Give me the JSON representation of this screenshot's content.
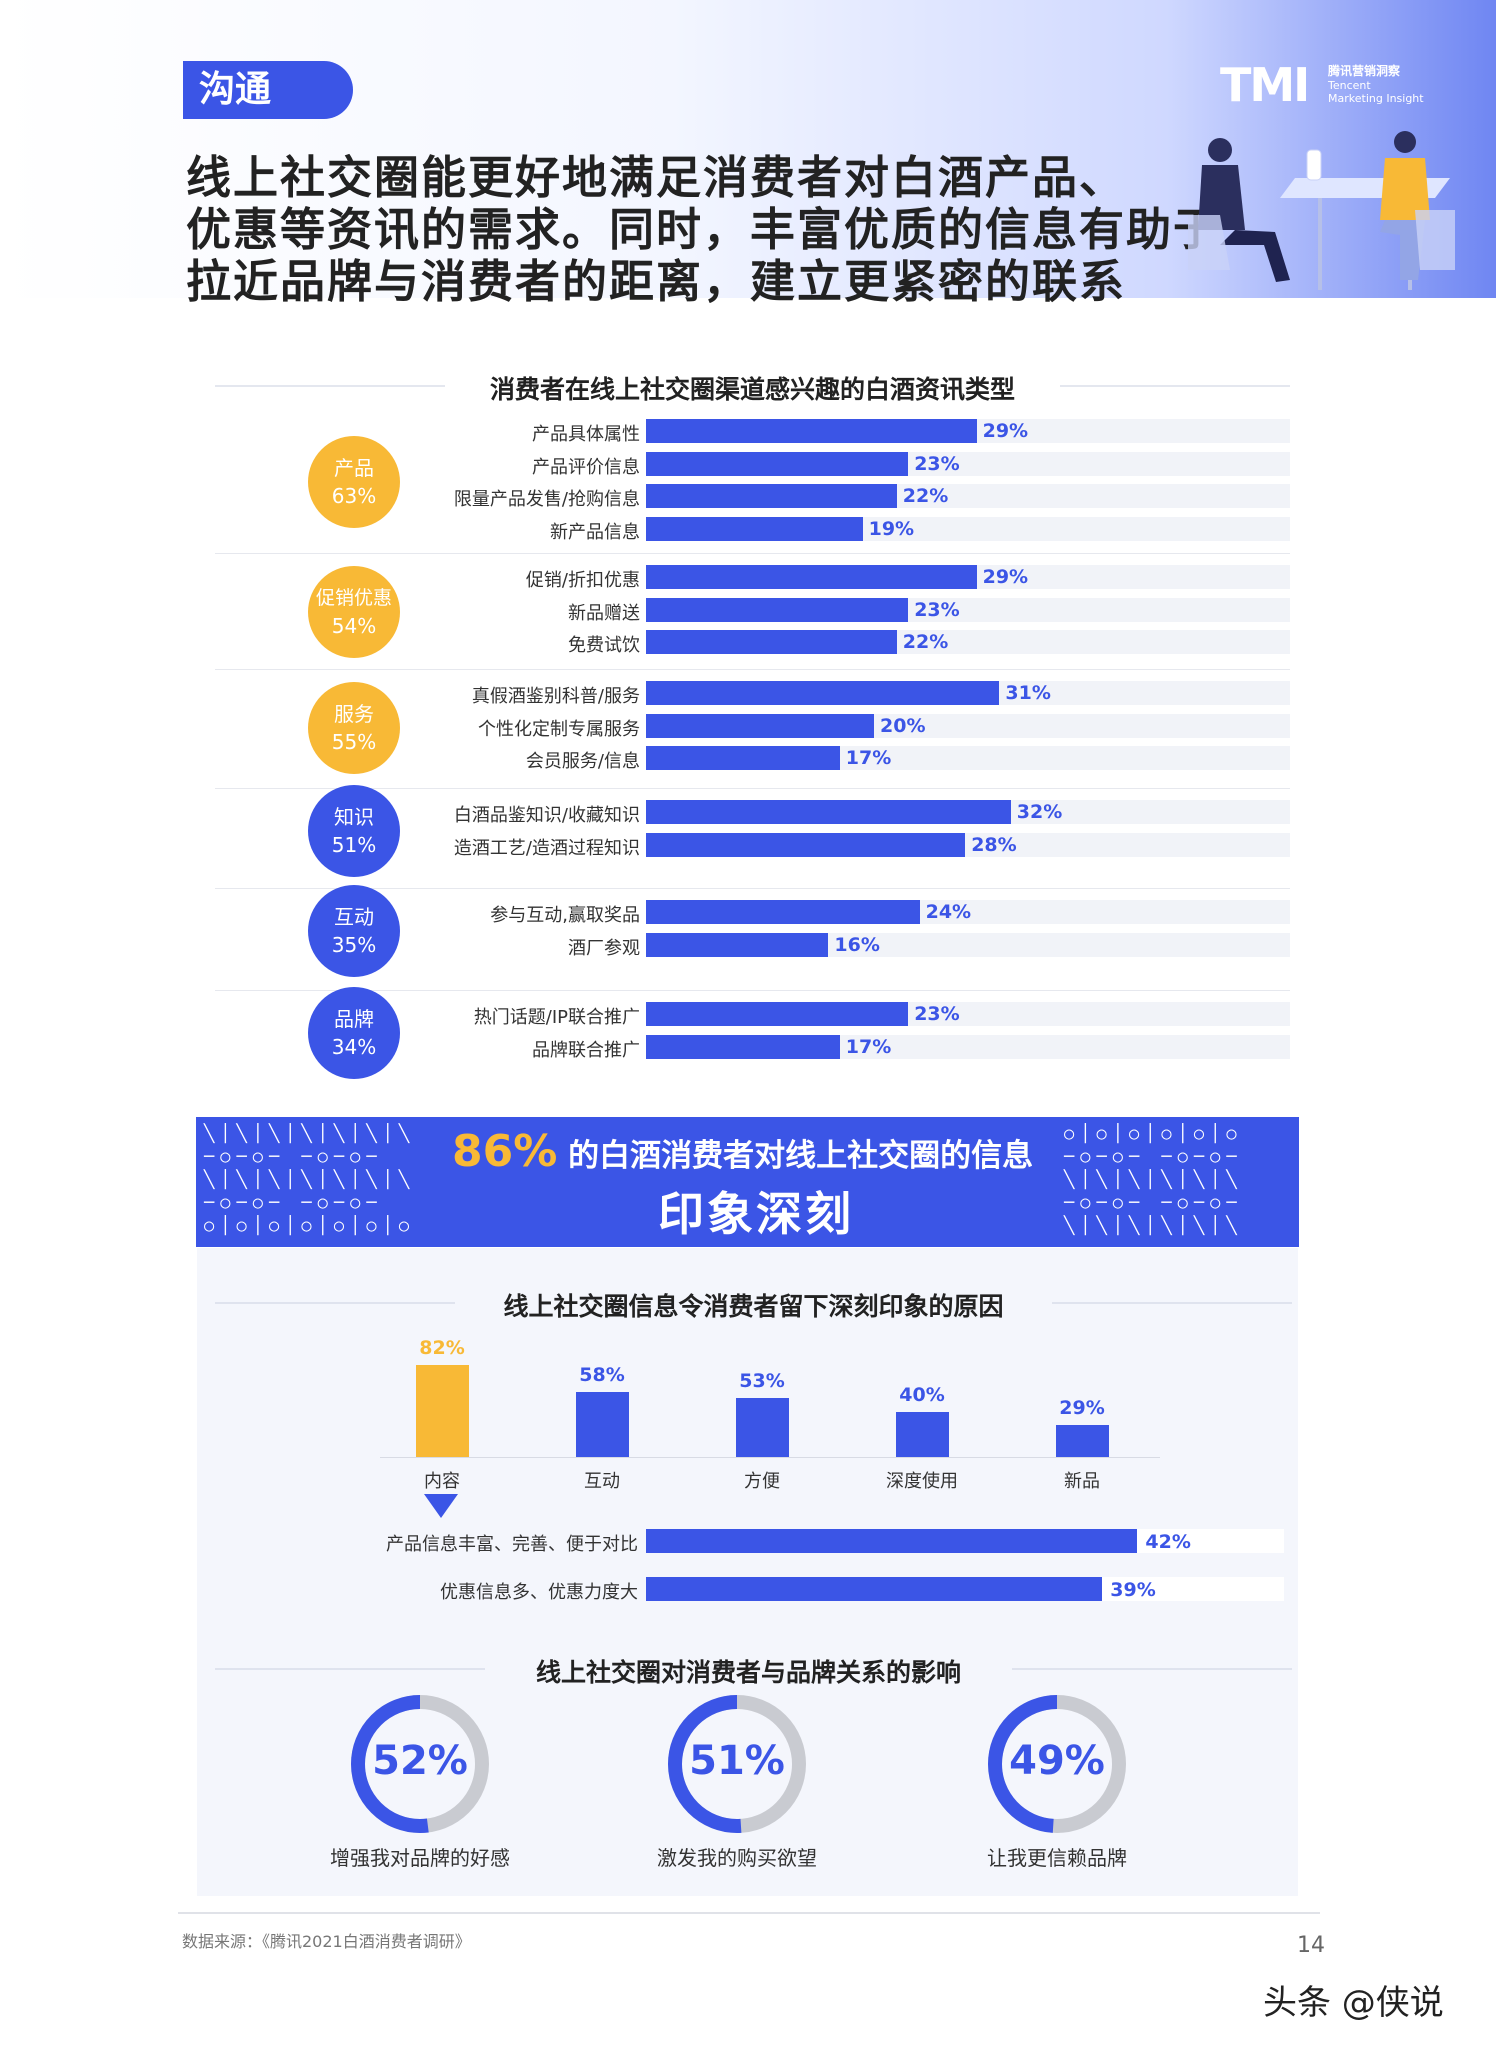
{
  "header": {
    "tag": "沟通",
    "headline": [
      "线上社交圈能更好地满足消费者对白酒产品、",
      "优惠等资讯的需求。同时，丰富优质的信息有助于",
      "拉近品牌与消费者的距离，建立更紧密的联系"
    ],
    "logo": {
      "mark": "TMI",
      "cn": "腾讯营销洞察",
      "en1": "Tencent",
      "en2": "Marketing Insight"
    }
  },
  "chart_data": [
    {
      "type": "bar",
      "orientation": "horizontal",
      "title": "消费者在线上社交圈渠道感兴趣的白酒资讯类型",
      "xlim": [
        0,
        50
      ],
      "groups": [
        {
          "name": "产品",
          "total": "63%",
          "color": "#f8b936",
          "items": [
            {
              "label": "产品具体属性",
              "value": 29
            },
            {
              "label": "产品评价信息",
              "value": 23
            },
            {
              "label": "限量产品发售/抢购信息",
              "value": 22
            },
            {
              "label": "新产品信息",
              "value": 19
            }
          ]
        },
        {
          "name": "促销优惠",
          "total": "54%",
          "color": "#f8b936",
          "items": [
            {
              "label": "促销/折扣优惠",
              "value": 29
            },
            {
              "label": "新品赠送",
              "value": 23
            },
            {
              "label": "免费试饮",
              "value": 22
            }
          ]
        },
        {
          "name": "服务",
          "total": "55%",
          "color": "#f8b936",
          "items": [
            {
              "label": "真假酒鉴别科普/服务",
              "value": 31
            },
            {
              "label": "个性化定制专属服务",
              "value": 20
            },
            {
              "label": "会员服务/信息",
              "value": 17
            }
          ]
        },
        {
          "name": "知识",
          "total": "51%",
          "color": "#3b55e6",
          "items": [
            {
              "label": "白酒品鉴知识/收藏知识",
              "value": 32
            },
            {
              "label": "造酒工艺/造酒过程知识",
              "value": 28
            }
          ]
        },
        {
          "name": "互动",
          "total": "35%",
          "color": "#3b55e6",
          "items": [
            {
              "label": "参与互动,赢取奖品",
              "value": 24
            },
            {
              "label": "酒厂参观",
              "value": 16
            }
          ]
        },
        {
          "name": "品牌",
          "total": "34%",
          "color": "#3b55e6",
          "items": [
            {
              "label": "热门话题/IP联合推广",
              "value": 23
            },
            {
              "label": "品牌联合推广",
              "value": 17
            }
          ]
        }
      ]
    },
    {
      "type": "bar",
      "orientation": "vertical",
      "title": "线上社交圈信息令消费者留下深刻印象的原因",
      "categories": [
        "内容",
        "互动",
        "方便",
        "深度使用",
        "新品"
      ],
      "values": [
        82,
        58,
        53,
        40,
        29
      ],
      "highlight_color": "#f8b936",
      "detail_parent": "内容",
      "detail": [
        {
          "label": "产品信息丰富、完善、便于对比",
          "value": 42
        },
        {
          "label": "优惠信息多、优惠力度大",
          "value": 39
        }
      ]
    },
    {
      "type": "pie",
      "title": "线上社交圈对消费者与品牌关系的影响",
      "items": [
        {
          "label": "增强我对品牌的好感",
          "value": 52
        },
        {
          "label": "激发我的购买欲望",
          "value": 51
        },
        {
          "label": "让我更信赖品牌",
          "value": 49
        }
      ]
    }
  ],
  "banner": {
    "pct": "86%",
    "line1": "的白酒消费者对线上社交圈的信息",
    "line2": "印象深刻"
  },
  "footer": {
    "source": "数据来源：《腾讯2021白酒消费者调研》",
    "page": "14",
    "watermark": "头条 @侠说"
  },
  "colors": {
    "blue": "#3b55e6",
    "yellow": "#f8b936",
    "track": "#f1f3f8",
    "ring_gray": "#c9cbd1"
  }
}
